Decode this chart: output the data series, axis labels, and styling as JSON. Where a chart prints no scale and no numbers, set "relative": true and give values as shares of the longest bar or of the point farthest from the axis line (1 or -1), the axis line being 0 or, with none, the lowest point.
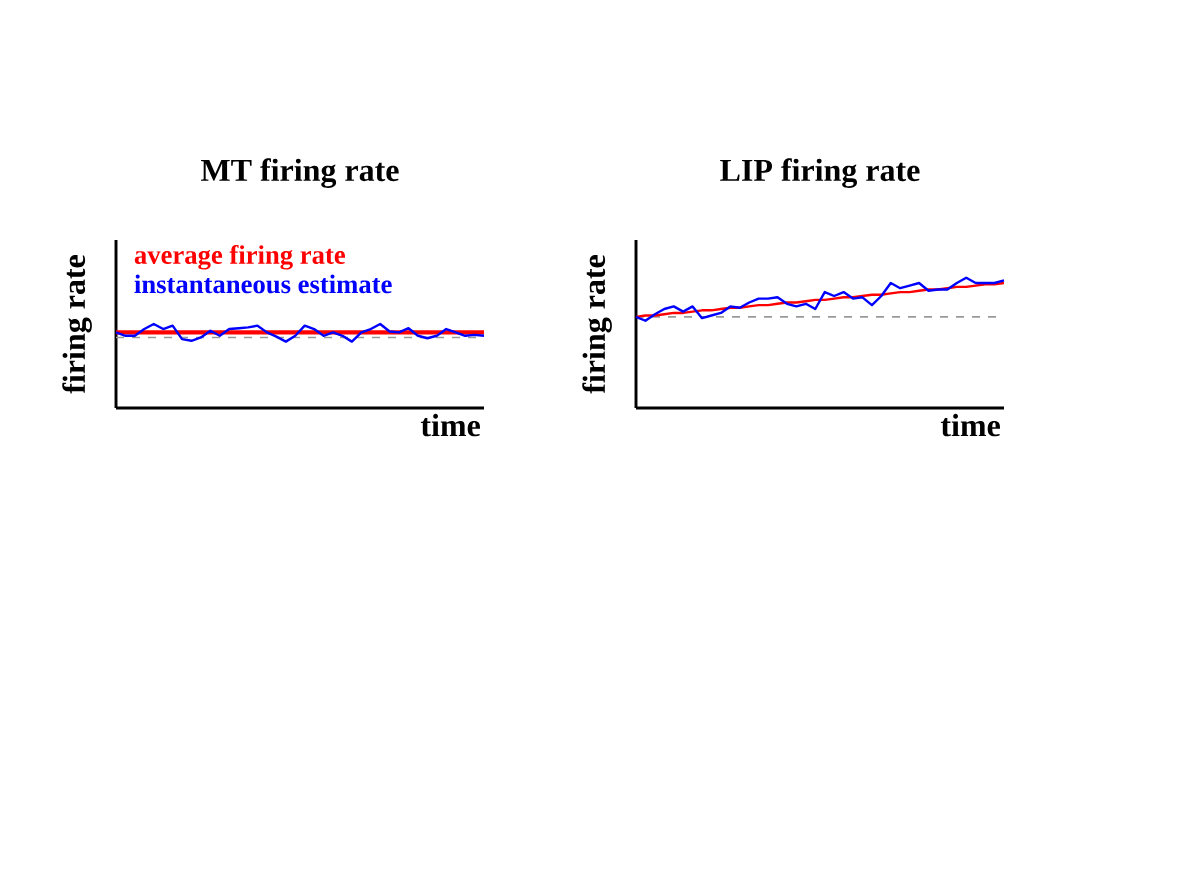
{
  "chart_data": [
    {
      "type": "line",
      "title": "MT firing rate",
      "xlabel": "time",
      "ylabel": "firing rate",
      "relative": true,
      "legend": "top left",
      "categories": [
        null,
        null,
        null,
        null,
        null,
        null,
        null,
        null,
        null,
        null,
        null,
        null,
        null,
        null,
        null,
        null,
        null,
        null,
        null,
        null,
        null,
        null,
        null,
        null,
        null,
        null,
        null,
        null,
        null,
        null,
        null,
        null,
        null,
        null,
        null,
        null,
        null,
        null,
        null,
        null
      ],
      "series": [
        {
          "name": "average firing rate",
          "color": "#ff0000",
          "values": [
            0.9,
            0.9,
            0.9,
            0.9,
            0.9,
            0.9,
            0.9,
            0.9,
            0.9,
            0.9,
            0.9,
            0.9,
            0.9,
            0.9,
            0.9,
            0.9,
            0.9,
            0.9,
            0.9,
            0.9,
            0.9,
            0.9,
            0.9,
            0.9,
            0.9,
            0.9,
            0.9,
            0.9,
            0.9,
            0.9,
            0.9,
            0.9,
            0.9,
            0.9,
            0.9,
            0.9,
            0.9,
            0.9,
            0.9,
            0.9
          ]
        },
        {
          "name": "instantaneous estimate",
          "color": "#0000ff",
          "values": [
            0.9,
            0.86,
            0.86,
            0.94,
            1.0,
            0.94,
            0.98,
            0.82,
            0.8,
            0.84,
            0.92,
            0.86,
            0.94,
            0.95,
            0.96,
            0.98,
            0.9,
            0.85,
            0.79,
            0.86,
            0.98,
            0.94,
            0.86,
            0.9,
            0.86,
            0.79,
            0.9,
            0.94,
            1.0,
            0.91,
            0.9,
            0.95,
            0.86,
            0.83,
            0.86,
            0.94,
            0.9,
            0.86,
            0.87,
            0.86
          ]
        }
      ],
      "ref_lines": [
        {
          "axis": "y",
          "value": 0.84,
          "color": "#999999",
          "line_style": "dashed"
        }
      ]
    },
    {
      "type": "line",
      "title": "LIP firing rate",
      "xlabel": "time",
      "ylabel": "firing rate",
      "relative": true,
      "categories": [
        null,
        null,
        null,
        null,
        null,
        null,
        null,
        null,
        null,
        null,
        null,
        null,
        null,
        null,
        null,
        null,
        null,
        null,
        null,
        null,
        null,
        null,
        null,
        null,
        null,
        null,
        null,
        null,
        null,
        null,
        null,
        null,
        null,
        null,
        null,
        null,
        null,
        null,
        null,
        null
      ],
      "series": [
        {
          "color": "#ff0000",
          "values": [
            0.7,
            0.71,
            0.71,
            0.72,
            0.73,
            0.73,
            0.74,
            0.75,
            0.75,
            0.76,
            0.77,
            0.77,
            0.78,
            0.79,
            0.79,
            0.8,
            0.81,
            0.81,
            0.82,
            0.83,
            0.83,
            0.84,
            0.85,
            0.85,
            0.86,
            0.87,
            0.87,
            0.88,
            0.89,
            0.89,
            0.9,
            0.91,
            0.91,
            0.92,
            0.93,
            0.93,
            0.94,
            0.95,
            0.95,
            0.96
          ]
        },
        {
          "color": "#0000ff",
          "values": [
            0.7,
            0.67,
            0.72,
            0.76,
            0.78,
            0.74,
            0.78,
            0.69,
            0.71,
            0.73,
            0.78,
            0.77,
            0.81,
            0.84,
            0.84,
            0.85,
            0.8,
            0.78,
            0.8,
            0.76,
            0.89,
            0.86,
            0.89,
            0.84,
            0.85,
            0.79,
            0.86,
            0.96,
            0.92,
            0.94,
            0.96,
            0.9,
            0.91,
            0.91,
            0.96,
            1.0,
            0.96,
            0.96,
            0.96,
            0.98
          ]
        }
      ],
      "ref_lines": [
        {
          "axis": "y",
          "value": 0.7,
          "color": "#999999",
          "line_style": "dashed"
        }
      ]
    }
  ]
}
